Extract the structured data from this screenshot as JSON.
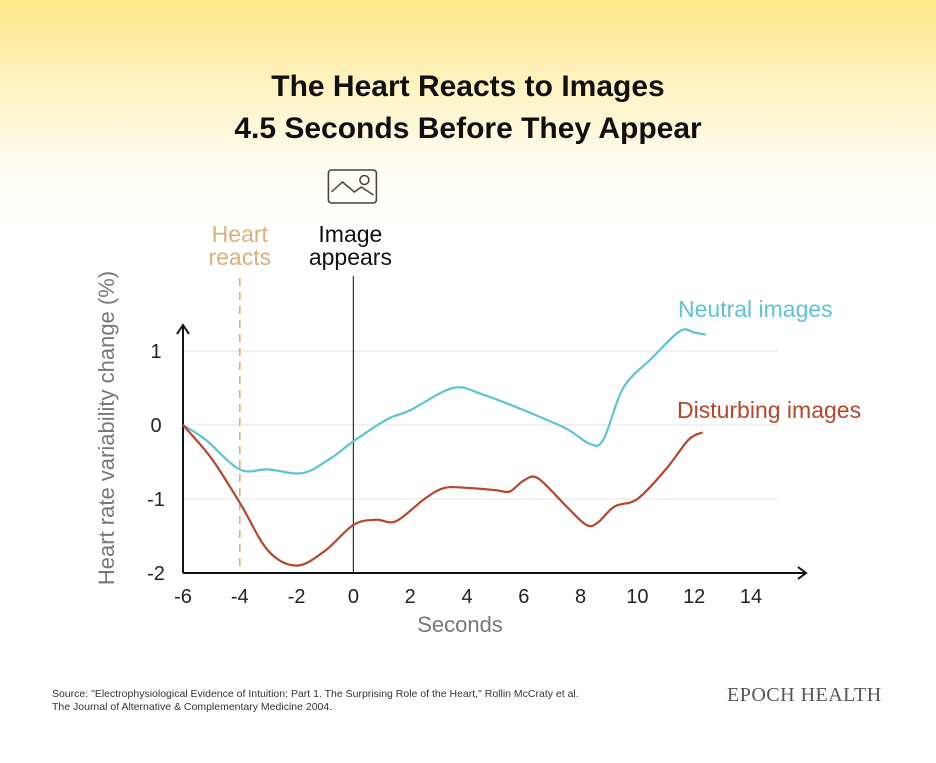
{
  "title_line1": "The Heart Reacts to Images",
  "title_line2": "4.5 Seconds Before They Appear",
  "source_line1": "Source: \"Electrophysiological Evidence of Intuition: Part 1. The Surprising Role of the Heart,\" Rollin McCraty et al.",
  "source_line2": "The Journal of Alternative & Complementary Medicine 2004.",
  "brand": "EPOCH HEALTH",
  "colors": {
    "neutral": "#5ec2d6",
    "disturbing": "#b5462a",
    "heart": "#d9b07a"
  },
  "chart_data": {
    "type": "line",
    "xlabel": "Seconds",
    "ylabel": "Heart rate variability change (%)",
    "xlim": [
      -6,
      15
    ],
    "ylim": [
      -2,
      1.3
    ],
    "xticks": [
      -6,
      -4,
      -2,
      0,
      2,
      4,
      6,
      8,
      10,
      12,
      14
    ],
    "yticks": [
      1,
      0,
      -1,
      -2
    ],
    "grid": true,
    "annotations": [
      {
        "label_line1": "Heart",
        "label_line2": "reacts",
        "x": -4
      },
      {
        "label_line1": "Image",
        "label_line2": "appears",
        "x": 0,
        "icon": "image-icon"
      }
    ],
    "series": [
      {
        "name": "Neutral images",
        "x": [
          -6,
          -5.2,
          -4,
          -3,
          -1.8,
          -0.8,
          0,
          1.2,
          2,
          3.5,
          4.5,
          6,
          7.5,
          8.3,
          8.8,
          9.5,
          10.5,
          11.5,
          12,
          12.4
        ],
        "y": [
          0,
          -0.2,
          -0.6,
          -0.6,
          -0.65,
          -0.45,
          -0.22,
          0.08,
          0.2,
          0.5,
          0.42,
          0.2,
          -0.05,
          -0.25,
          -0.2,
          0.5,
          0.9,
          1.27,
          1.25,
          1.22
        ]
      },
      {
        "name": "Disturbing images",
        "x": [
          -6,
          -5,
          -4,
          -3,
          -2,
          -1,
          0,
          0.8,
          1.5,
          2.5,
          3.2,
          4,
          5,
          5.5,
          6,
          6.5,
          7.5,
          8.2,
          8.6,
          9.2,
          10,
          11,
          11.8,
          12.3
        ],
        "y": [
          0,
          -0.45,
          -1.05,
          -1.7,
          -1.9,
          -1.7,
          -1.35,
          -1.28,
          -1.3,
          -1.0,
          -0.85,
          -0.85,
          -0.88,
          -0.9,
          -0.75,
          -0.72,
          -1.1,
          -1.35,
          -1.32,
          -1.1,
          -1.0,
          -0.6,
          -0.2,
          -0.1
        ]
      }
    ]
  }
}
